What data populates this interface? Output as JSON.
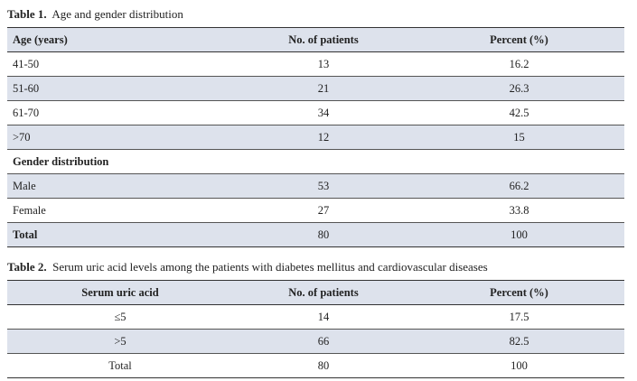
{
  "table1": {
    "caption_label": "Table 1.",
    "caption_text": "Age and gender distribution",
    "headers": [
      "Age (years)",
      "No. of patients",
      "Percent (%)"
    ],
    "age_rows": [
      [
        "41-50",
        "13",
        "16.2"
      ],
      [
        "51-60",
        "21",
        "26.3"
      ],
      [
        "61-70",
        "34",
        "42.5"
      ],
      [
        ">70",
        "12",
        "15"
      ]
    ],
    "gender_heading": "Gender distribution",
    "gender_rows": [
      [
        "Male",
        "53",
        "66.2"
      ],
      [
        "Female",
        "27",
        "33.8"
      ]
    ],
    "total_row": [
      "Total",
      "80",
      "100"
    ]
  },
  "table2": {
    "caption_label": "Table 2.",
    "caption_text": "Serum uric acid levels among the patients with diabetes mellitus and cardiovascular diseases",
    "headers": [
      "Serum uric acid",
      "No. of patients",
      "Percent (%)"
    ],
    "rows": [
      [
        "≤5",
        "14",
        "17.5"
      ],
      [
        ">5",
        "66",
        "82.5"
      ],
      [
        "Total",
        "80",
        "100"
      ]
    ]
  },
  "colors": {
    "header_bg": "#dde2ec",
    "shade_bg": "#dde2ec",
    "rule": "#333333"
  }
}
